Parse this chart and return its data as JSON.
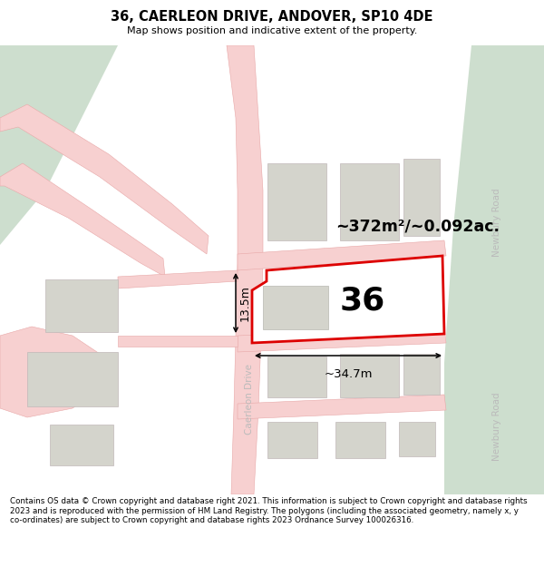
{
  "title": "36, CAERLEON DRIVE, ANDOVER, SP10 4DE",
  "subtitle": "Map shows position and indicative extent of the property.",
  "footer": "Contains OS data © Crown copyright and database right 2021. This information is subject to Crown copyright and database rights 2023 and is reproduced with the permission of HM Land Registry. The polygons (including the associated geometry, namely x, y co-ordinates) are subject to Crown copyright and database rights 2023 Ordnance Survey 100026316.",
  "area_label": "~372m²/~0.092ac.",
  "width_label": "~34.7m",
  "height_label": "13.5m",
  "number_label": "36",
  "bg_map": "#f2f2ee",
  "road_fill": "#f7d0d0",
  "road_edge": "#e8a8a8",
  "green_fill": "#cddece",
  "building_fill": "#d4d4cc",
  "building_edge": "#c0b8b8",
  "plot_fill": "#ffffff",
  "plot_edge": "#dd0000",
  "road_label": "#bbbbbb",
  "white": "#ffffff"
}
